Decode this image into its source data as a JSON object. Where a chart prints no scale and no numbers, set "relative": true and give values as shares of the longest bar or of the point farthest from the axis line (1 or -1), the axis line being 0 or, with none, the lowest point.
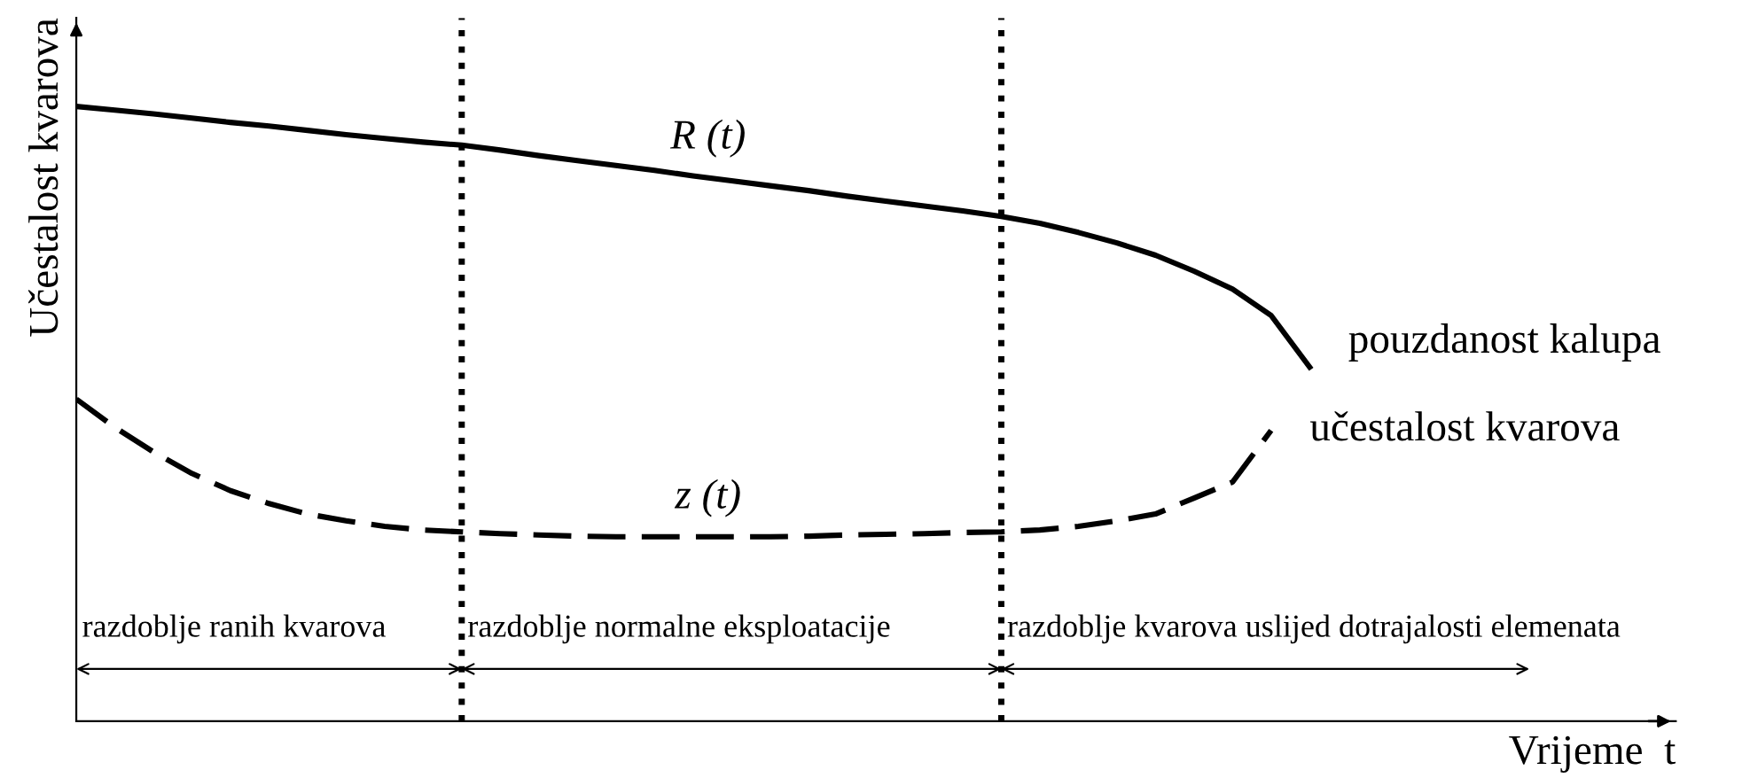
{
  "chart_data": {
    "type": "line",
    "relative": true,
    "xlabel": "Vrijeme  t",
    "ylabel": "Učestalost kvarova",
    "categories": [
      null,
      null,
      null,
      null,
      null,
      null,
      null,
      null,
      null,
      null,
      null,
      null,
      null,
      null,
      null,
      null,
      null,
      null,
      null,
      null,
      null,
      null,
      null,
      null,
      null,
      null,
      null,
      null,
      null,
      null,
      null,
      null,
      null,
      null,
      null,
      null,
      null,
      null,
      null,
      null,
      null,
      null
    ],
    "series": [
      {
        "name": "pouzdanost kalupa",
        "color": "#000000",
        "line_style": "solid",
        "values": [
          1.0,
          0.994,
          0.988,
          0.981,
          0.974,
          0.968,
          0.961,
          0.954,
          0.948,
          0.942,
          0.937,
          0.929,
          0.92,
          0.912,
          0.904,
          0.896,
          0.887,
          0.879,
          0.871,
          0.863,
          0.854,
          0.846,
          0.838,
          0.83,
          0.821,
          0.81,
          0.795,
          0.778,
          0.758,
          0.732,
          0.703,
          0.66,
          0.576,
          null,
          null,
          null,
          null,
          null,
          null,
          null,
          null,
          null
        ]
      },
      {
        "name": "učestalost kvarova",
        "color": "#000000",
        "line_style": "dashed",
        "values": [
          0.524,
          0.478,
          0.438,
          0.403,
          0.375,
          0.354,
          0.337,
          0.326,
          0.317,
          0.311,
          0.308,
          0.305,
          0.303,
          0.301,
          0.3,
          0.3,
          0.3,
          0.3,
          0.3,
          0.301,
          0.303,
          0.304,
          0.305,
          0.307,
          0.308,
          0.311,
          0.317,
          0.326,
          0.337,
          0.363,
          0.389,
          0.473,
          null,
          null,
          null,
          null,
          null,
          null,
          null,
          null,
          null,
          null
        ]
      }
    ],
    "annotations": [
      {
        "text": "R (t)",
        "y": 0.885
      },
      {
        "text": "z (t)",
        "y": 0.3
      },
      "razdoblje ranih kvarova",
      "razdoblje normalne eksploatacije",
      "razdoblje kvarova uslijed dotrajalosti elemenata"
    ]
  }
}
